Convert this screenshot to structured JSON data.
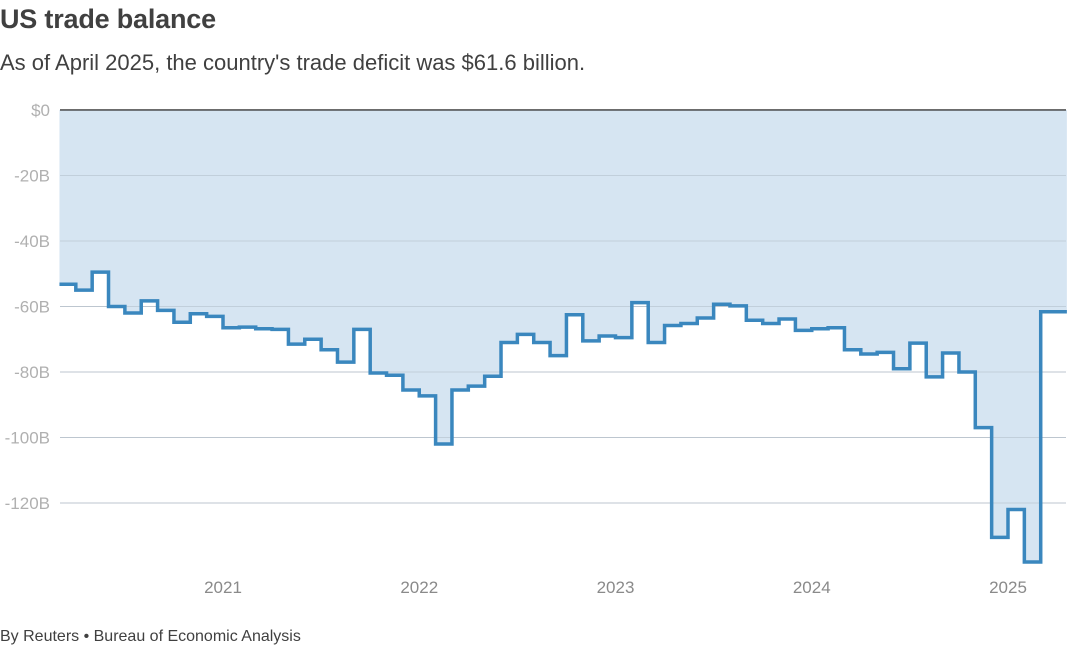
{
  "header": {
    "title": "US trade balance",
    "subtitle": "As of April 2025, the country's trade deficit was $61.6 billion."
  },
  "footer": {
    "source": "By Reuters • Bureau of Economic Analysis"
  },
  "colors": {
    "line": "#3a87be",
    "fill": "#d6e5f2",
    "grid": "#c8c8c8",
    "zero_line": "#333333"
  },
  "chart_data": {
    "type": "area",
    "title": "US trade balance",
    "subtitle": "As of April 2025, the country's trade deficit was $61.6 billion.",
    "step": true,
    "grid": true,
    "ylim": [
      -138,
      0
    ],
    "yticks": [
      {
        "value": 0,
        "label": "$0"
      },
      {
        "value": -20,
        "label": "-20B"
      },
      {
        "value": -40,
        "label": "-40B"
      },
      {
        "value": -60,
        "label": "-60B"
      },
      {
        "value": -80,
        "label": "-80B"
      },
      {
        "value": -100,
        "label": "-100B"
      },
      {
        "value": -120,
        "label": "-120B"
      }
    ],
    "xticks": [
      "2021",
      "2022",
      "2023",
      "2024",
      "2025"
    ],
    "x": [
      "2020-03",
      "2020-04",
      "2020-05",
      "2020-06",
      "2020-07",
      "2020-08",
      "2020-09",
      "2020-10",
      "2020-11",
      "2020-12",
      "2021-01",
      "2021-02",
      "2021-03",
      "2021-04",
      "2021-05",
      "2021-06",
      "2021-07",
      "2021-08",
      "2021-09",
      "2021-10",
      "2021-11",
      "2021-12",
      "2022-01",
      "2022-02",
      "2022-03",
      "2022-04",
      "2022-05",
      "2022-06",
      "2022-07",
      "2022-08",
      "2022-09",
      "2022-10",
      "2022-11",
      "2022-12",
      "2023-01",
      "2023-02",
      "2023-03",
      "2023-04",
      "2023-05",
      "2023-06",
      "2023-07",
      "2023-08",
      "2023-09",
      "2023-10",
      "2023-11",
      "2023-12",
      "2024-01",
      "2024-02",
      "2024-03",
      "2024-04",
      "2024-05",
      "2024-06",
      "2024-07",
      "2024-08",
      "2024-09",
      "2024-10",
      "2024-11",
      "2024-12",
      "2025-01",
      "2025-02",
      "2025-03",
      "2025-04"
    ],
    "series": [
      {
        "values": [
          -53.2,
          -55,
          -49.5,
          -60,
          -62,
          -58.3,
          -61.2,
          -64.8,
          -62.2,
          -63,
          -66.5,
          -66.3,
          -66.8,
          -67,
          -71.5,
          -70,
          -73.2,
          -77,
          -67,
          -80.3,
          -81,
          -85.5,
          -87.3,
          -102,
          -85.5,
          -84.3,
          -81.3,
          -71,
          -68.5,
          -71,
          -75,
          -62.5,
          -70.5,
          -69,
          -69.5,
          -58.8,
          -71,
          -65.8,
          -65.2,
          -63.5,
          -59.3,
          -59.8,
          -64.2,
          -65.2,
          -63.8,
          -67.3,
          -66.8,
          -66.5,
          -73.2,
          -74.5,
          -74,
          -79,
          -71.2,
          -81.5,
          -74.2,
          -80,
          -97,
          -130.5,
          -122,
          -138,
          -61.6,
          -61.6
        ]
      }
    ]
  }
}
